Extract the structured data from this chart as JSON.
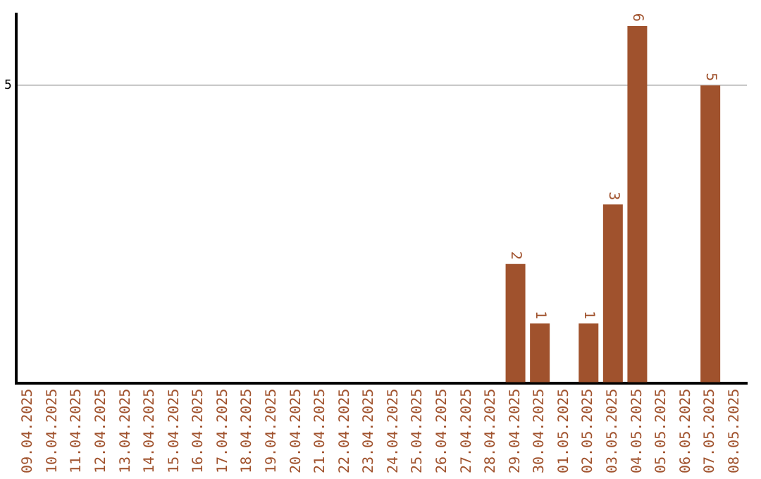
{
  "chart_data": {
    "type": "bar",
    "categories": [
      "09.04.2025",
      "10.04.2025",
      "11.04.2025",
      "12.04.2025",
      "13.04.2025",
      "14.04.2025",
      "15.04.2025",
      "16.04.2025",
      "17.04.2025",
      "18.04.2025",
      "19.04.2025",
      "20.04.2025",
      "21.04.2025",
      "22.04.2025",
      "23.04.2025",
      "24.04.2025",
      "25.04.2025",
      "26.04.2025",
      "27.04.2025",
      "28.04.2025",
      "29.04.2025",
      "30.04.2025",
      "01.05.2025",
      "02.05.2025",
      "03.05.2025",
      "04.05.2025",
      "05.05.2025",
      "06.05.2025",
      "07.05.2025",
      "08.05.2025"
    ],
    "values": [
      null,
      null,
      null,
      null,
      null,
      null,
      null,
      null,
      null,
      null,
      null,
      null,
      null,
      null,
      null,
      null,
      null,
      null,
      null,
      null,
      2,
      1,
      null,
      1,
      3,
      6,
      null,
      null,
      5,
      null
    ],
    "data_labels": true,
    "color": "#a0522d",
    "ylim": [
      0,
      6.2
    ],
    "yticks": [
      {
        "value": 0,
        "label": null
      },
      5
    ],
    "grid": "y",
    "legend": false
  }
}
